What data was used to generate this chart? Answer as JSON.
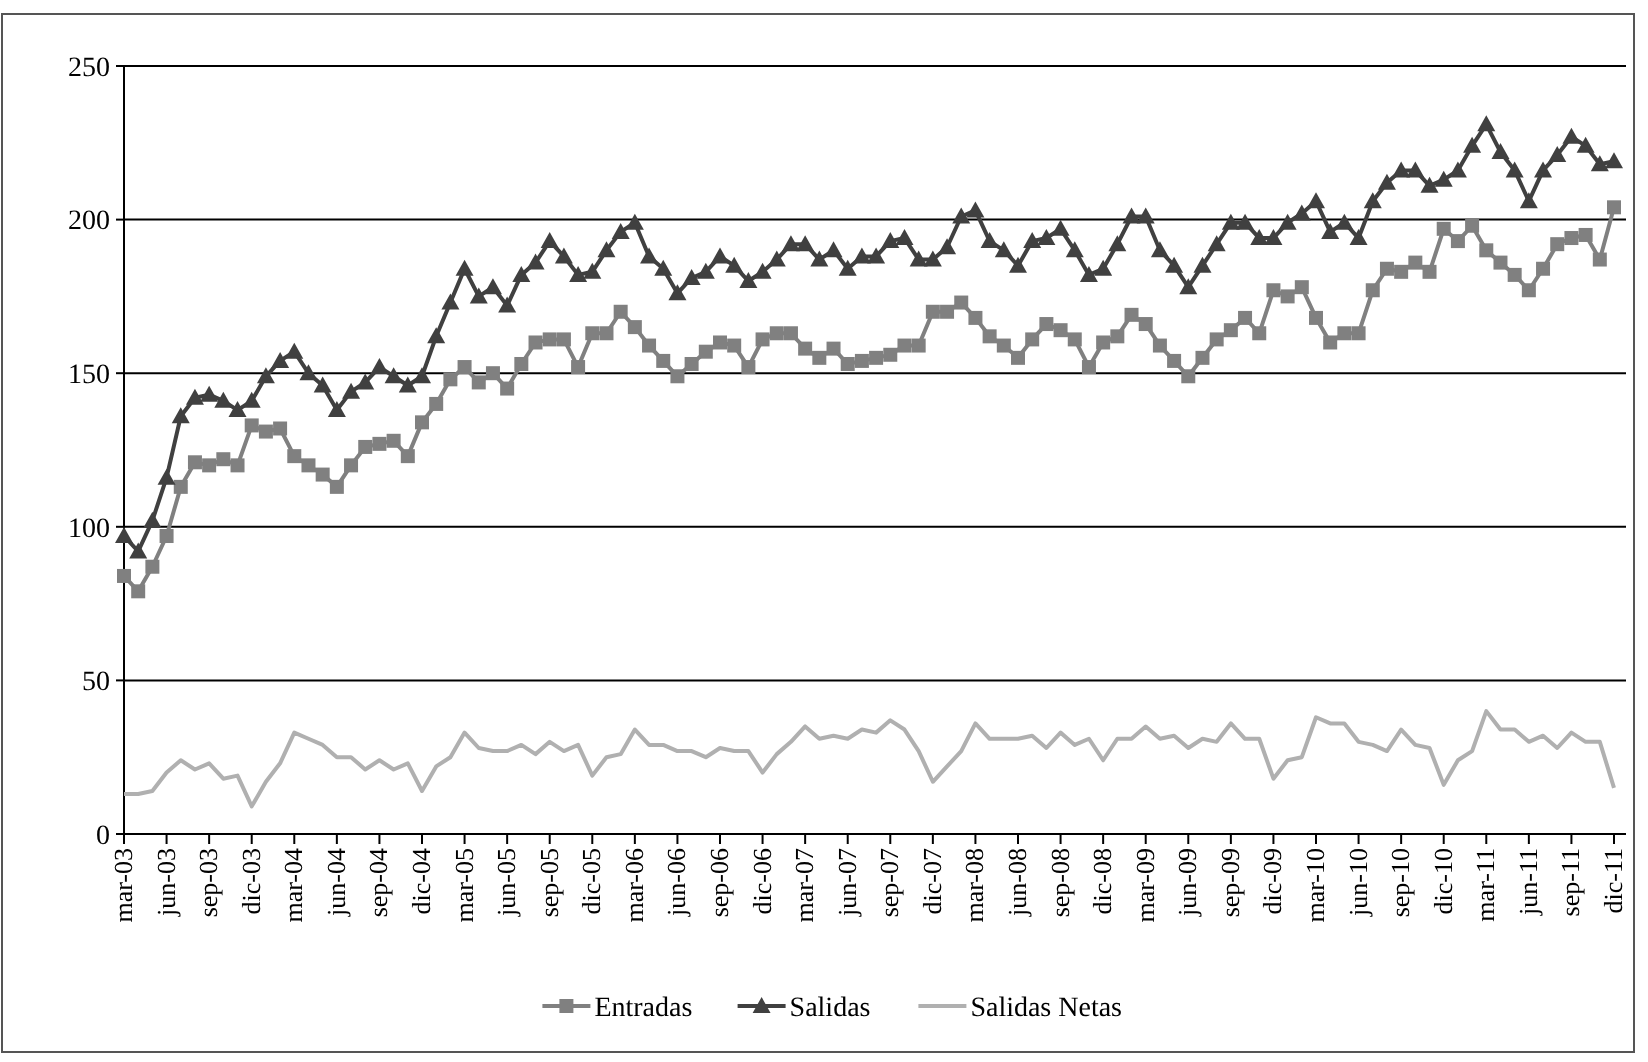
{
  "chart_data": {
    "type": "line",
    "categories": [
      "mar-03",
      null,
      null,
      "jun-03",
      null,
      null,
      "sep-03",
      null,
      null,
      "dic-03",
      null,
      null,
      "mar-04",
      null,
      null,
      "jun-04",
      null,
      null,
      "sep-04",
      null,
      null,
      "dic-04",
      null,
      null,
      "mar-05",
      null,
      null,
      "jun-05",
      null,
      null,
      "sep-05",
      null,
      null,
      "dic-05",
      null,
      null,
      "mar-06",
      null,
      null,
      "jun-06",
      null,
      null,
      "sep-06",
      null,
      null,
      "dic-06",
      null,
      null,
      "mar-07",
      null,
      null,
      "jun-07",
      null,
      null,
      "sep-07",
      null,
      null,
      "dic-07",
      null,
      null,
      "mar-08",
      null,
      null,
      "jun-08",
      null,
      null,
      "sep-08",
      null,
      null,
      "dic-08",
      null,
      null,
      "mar-09",
      null,
      null,
      "jun-09",
      null,
      null,
      "sep-09",
      null,
      null,
      "dic-09",
      null,
      null,
      "mar-10",
      null,
      null,
      "jun-10",
      null,
      null,
      "sep-10",
      null,
      null,
      "dic-10",
      null,
      null,
      "mar-11",
      null,
      null,
      "jun-11",
      null,
      null,
      "sep-11",
      null,
      null,
      "dic-11"
    ],
    "series": [
      {
        "name": "Entradas",
        "color": "#808080",
        "marker": "square",
        "values": [
          84,
          79,
          87,
          97,
          113,
          121,
          120,
          122,
          120,
          133,
          131,
          132,
          123,
          120,
          117,
          113,
          120,
          126,
          127,
          128,
          123,
          134,
          140,
          148,
          152,
          147,
          150,
          145,
          153,
          160,
          161,
          161,
          152,
          163,
          163,
          170,
          165,
          159,
          154,
          149,
          153,
          157,
          160,
          159,
          152,
          161,
          163,
          163,
          158,
          155,
          158,
          153,
          154,
          155,
          156,
          159,
          159,
          170,
          170,
          173,
          168,
          162,
          159,
          155,
          161,
          166,
          164,
          161,
          152,
          160,
          162,
          169,
          166,
          159,
          154,
          149,
          155,
          161,
          164,
          168,
          163,
          177,
          175,
          178,
          168,
          160,
          163,
          163,
          177,
          184,
          183,
          186,
          183,
          197,
          193,
          198,
          190,
          186,
          182,
          177,
          184,
          192,
          194,
          195,
          187,
          204
        ]
      },
      {
        "name": "Salidas",
        "color": "#404040",
        "marker": "triangle",
        "values": [
          97,
          92,
          102,
          116,
          136,
          142,
          143,
          141,
          138,
          141,
          149,
          154,
          157,
          150,
          146,
          138,
          144,
          147,
          152,
          149,
          146,
          149,
          162,
          173,
          184,
          175,
          178,
          172,
          182,
          186,
          193,
          188,
          182,
          183,
          190,
          196,
          199,
          188,
          184,
          176,
          181,
          183,
          188,
          185,
          180,
          183,
          187,
          192,
          192,
          187,
          190,
          184,
          188,
          188,
          193,
          194,
          187,
          187,
          191,
          201,
          203,
          193,
          190,
          185,
          193,
          194,
          197,
          190,
          182,
          184,
          192,
          201,
          201,
          190,
          185,
          178,
          185,
          192,
          199,
          199,
          194,
          194,
          199,
          202,
          206,
          196,
          199,
          194,
          206,
          212,
          216,
          216,
          211,
          213,
          216,
          224,
          231,
          222,
          216,
          206,
          216,
          221,
          227,
          224,
          218,
          219
        ]
      },
      {
        "name": "Salidas Netas",
        "color": "#b0b0b0",
        "marker": "none",
        "values": [
          13,
          13,
          14,
          20,
          24,
          21,
          23,
          18,
          19,
          9,
          17,
          23,
          33,
          31,
          29,
          25,
          25,
          21,
          24,
          21,
          23,
          14,
          22,
          25,
          33,
          28,
          27,
          27,
          29,
          26,
          30,
          27,
          29,
          19,
          25,
          26,
          34,
          29,
          29,
          27,
          27,
          25,
          28,
          27,
          27,
          20,
          26,
          30,
          35,
          31,
          32,
          31,
          34,
          33,
          37,
          34,
          27,
          17,
          22,
          27,
          36,
          31,
          31,
          31,
          32,
          28,
          33,
          29,
          31,
          24,
          31,
          31,
          35,
          31,
          32,
          28,
          31,
          30,
          36,
          31,
          31,
          18,
          24,
          25,
          38,
          36,
          36,
          30,
          29,
          27,
          34,
          29,
          28,
          16,
          24,
          27,
          40,
          34,
          34,
          30,
          32,
          28,
          33,
          30,
          30,
          15
        ]
      }
    ],
    "ylim": [
      0,
      250
    ],
    "yticks": [
      0,
      50,
      100,
      150,
      200,
      250
    ],
    "grid": "y",
    "legend": "bottom",
    "line_style": "solid"
  }
}
